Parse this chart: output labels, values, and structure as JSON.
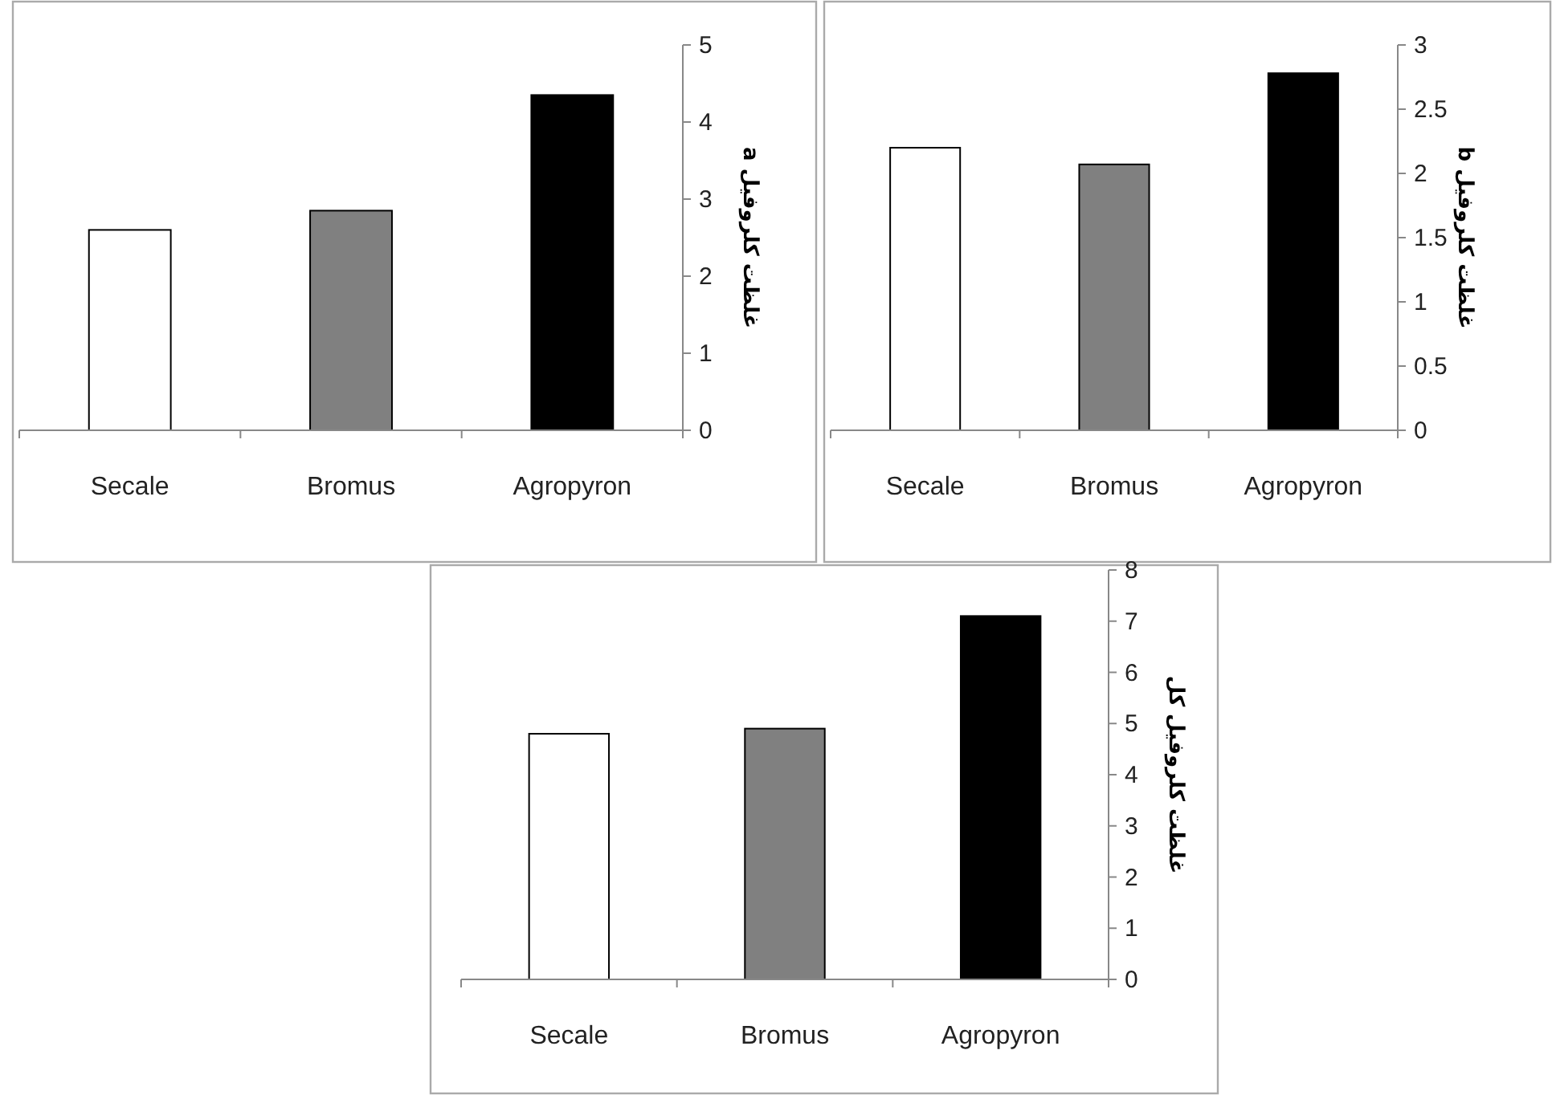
{
  "chart_data": [
    {
      "type": "bar",
      "categories": [
        "Secale",
        "Bromus",
        "Agropyron"
      ],
      "values": [
        2.6,
        2.85,
        4.35
      ],
      "colors": [
        "#ffffff",
        "#808080",
        "#000000"
      ],
      "ylim": [
        0,
        5
      ],
      "yticks": [
        0,
        1,
        2,
        3,
        4,
        5
      ],
      "ylabel": "غلظت کلروفیل a"
    },
    {
      "type": "bar",
      "categories": [
        "Secale",
        "Bromus",
        "Agropyron"
      ],
      "values": [
        2.2,
        2.07,
        2.78
      ],
      "colors": [
        "#ffffff",
        "#808080",
        "#000000"
      ],
      "ylim": [
        0,
        3
      ],
      "yticks": [
        0,
        0.5,
        1,
        1.5,
        2,
        2.5,
        3
      ],
      "ylabel": "غلظت کلروفیل b"
    },
    {
      "type": "bar",
      "categories": [
        "Secale",
        "Bromus",
        "Agropyron"
      ],
      "values": [
        4.8,
        4.9,
        7.1
      ],
      "colors": [
        "#ffffff",
        "#808080",
        "#000000"
      ],
      "ylim": [
        0,
        8
      ],
      "yticks": [
        0,
        1,
        2,
        3,
        4,
        5,
        6,
        7,
        8
      ],
      "ylabel": "غلظت کلروفیل کل"
    }
  ]
}
